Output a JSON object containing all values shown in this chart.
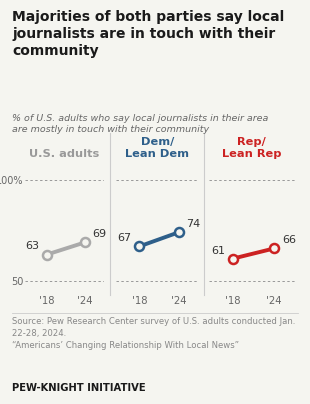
{
  "title": "Majorities of both parties say local\njournalists are in touch with their\ncommunity",
  "subtitle": "% of U.S. adults who say local journalists in their area\nare mostly in touch with their community",
  "panels": [
    {
      "label": "U.S. adults",
      "label_color": "#999999",
      "x": [
        2018,
        2024
      ],
      "y": [
        63,
        69
      ],
      "line_color": "#aaaaaa",
      "marker_color": "#f5f5f0",
      "marker_edge_color": "#aaaaaa"
    },
    {
      "label": "Dem/\nLean Dem",
      "label_color": "#2e5f8a",
      "x": [
        2018,
        2024
      ],
      "y": [
        67,
        74
      ],
      "line_color": "#2e5f8a",
      "marker_color": "#f5f5f0",
      "marker_edge_color": "#2e5f8a"
    },
    {
      "label": "Rep/\nLean Rep",
      "label_color": "#cc2222",
      "x": [
        2018,
        2024
      ],
      "y": [
        61,
        66
      ],
      "line_color": "#cc2222",
      "marker_color": "#f5f5f0",
      "marker_edge_color": "#cc2222"
    }
  ],
  "ylim": [
    44,
    108
  ],
  "yticks": [
    50,
    100
  ],
  "ytick_labels": [
    "50",
    "100%"
  ],
  "xtick_labels": [
    "'18",
    "'24"
  ],
  "source_text": "Source: Pew Research Center survey of U.S. adults conducted Jan.\n22-28, 2024.\n“Americans’ Changing Relationship With Local News”",
  "footer_text": "PEW-KNIGHT INITIATIVE",
  "bg_color": "#f5f5f0",
  "divider_color": "#cccccc",
  "title_color": "#1a1a1a",
  "subtitle_color": "#666666",
  "source_color": "#888888",
  "footer_color": "#1a1a1a"
}
